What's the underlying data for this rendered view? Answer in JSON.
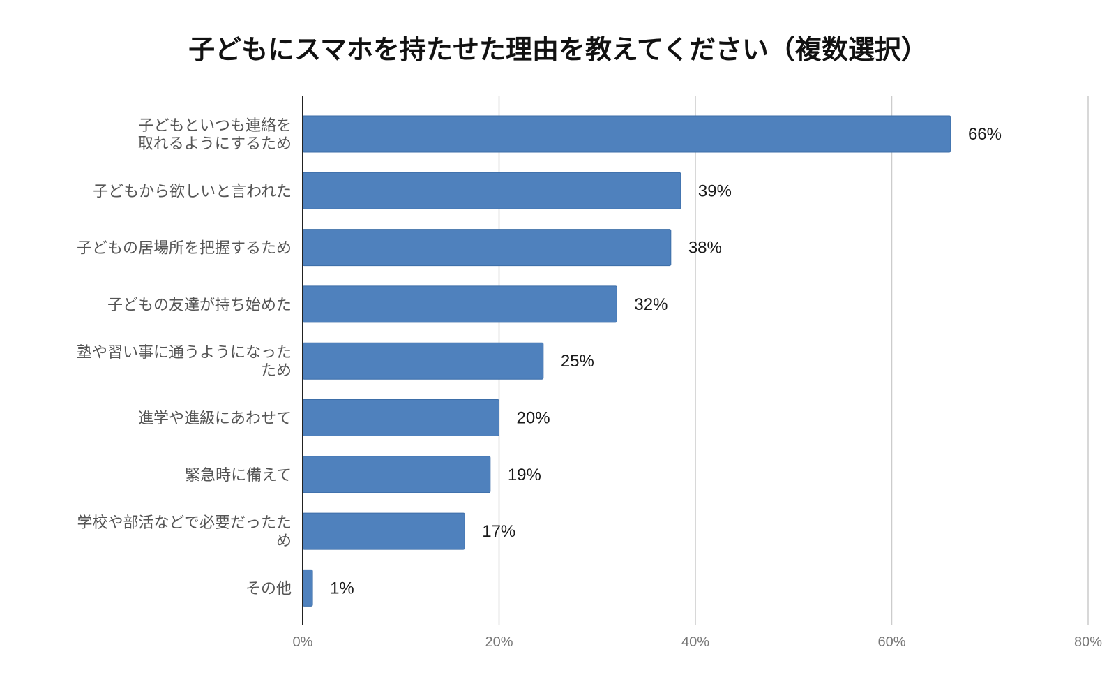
{
  "chart_data": {
    "type": "bar",
    "orientation": "horizontal",
    "title": "子どもにスマホを持たせた理由を教えてください（複数選択）",
    "categories": [
      [
        "子どもといつも連絡を",
        "取れるようにするため"
      ],
      [
        "子どもから欲しいと言われた"
      ],
      [
        "子どもの居場所を把握するため"
      ],
      [
        "子どもの友達が持ち始めた"
      ],
      [
        "塾や習い事に通うようになった",
        "ため"
      ],
      [
        "進学や進級にあわせて"
      ],
      [
        "緊急時に備えて"
      ],
      [
        "学校や部活などで必要だったた",
        "め"
      ],
      [
        "その他"
      ]
    ],
    "values": [
      66,
      39,
      38,
      32,
      25,
      20,
      19,
      17,
      1
    ],
    "plotted_values": [
      66,
      38.5,
      37.5,
      32,
      24.5,
      20,
      19.1,
      16.5,
      1
    ],
    "value_labels": [
      "66%",
      "39%",
      "38%",
      "32%",
      "25%",
      "20%",
      "19%",
      "17%",
      "1%"
    ],
    "xlim": [
      0,
      80
    ],
    "x_ticks": [
      0,
      20,
      40,
      60,
      80
    ],
    "x_tick_labels": [
      "0%",
      "20%",
      "40%",
      "60%",
      "80%"
    ],
    "grid": true,
    "legend": "none",
    "colors": {
      "bar": "#4f81bd",
      "bar_border": "#3d6ea8",
      "grid": "#cccccc",
      "axis": "#222222"
    }
  }
}
